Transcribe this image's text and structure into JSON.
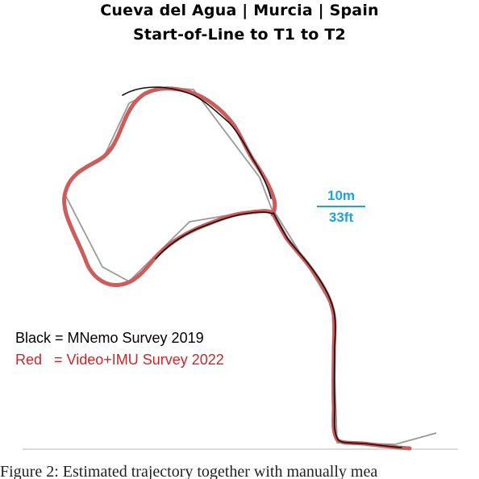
{
  "title": {
    "line1": "Cueva del Agua | Murcia | Spain",
    "line2": "Start-of-Line to T1 to T2"
  },
  "scale_bar": {
    "top_label": "10m",
    "bottom_label": "33ft",
    "color": "#1fa3d8"
  },
  "legend": {
    "black_entry": "Black = MNemo Survey 2019",
    "red_entry": "Red   = Video+IMU Survey 2022",
    "black_color": "#000000",
    "red_color": "#d0252a"
  },
  "colors": {
    "mnemo_survey": "#111111",
    "video_imu_survey": "#cd5c5c",
    "reference_line": "#999999"
  },
  "caption": "Figure 2: Estimated trajectory together with manually mea"
}
